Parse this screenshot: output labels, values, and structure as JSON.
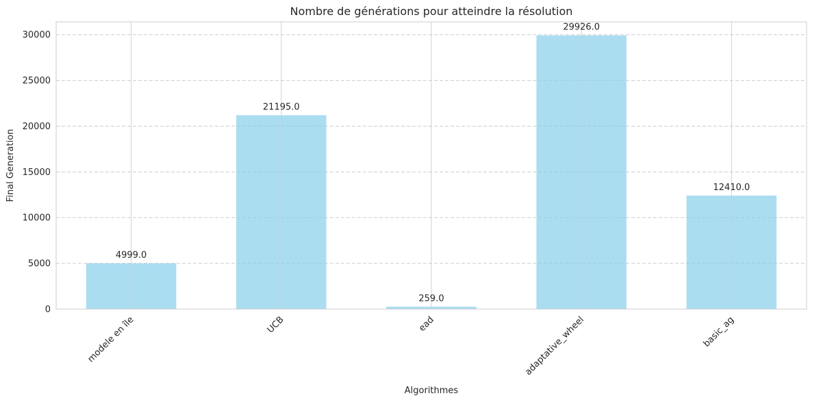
{
  "chart_data": {
    "type": "bar",
    "title": "Nombre de générations pour atteindre la résolution",
    "xlabel": "Algorithmes",
    "ylabel": "Final Generation",
    "categories": [
      "modele en île",
      "UCB",
      "ead",
      "adaptative_wheel",
      "basic_ag"
    ],
    "values": [
      4999.0,
      21195.0,
      259.0,
      29926.0,
      12410.0
    ],
    "value_labels": [
      "4999.0",
      "21195.0",
      "259.0",
      "29926.0",
      "12410.0"
    ],
    "ylim": [
      0,
      31400
    ],
    "yticks": [
      0,
      5000,
      10000,
      15000,
      20000,
      25000,
      30000
    ],
    "ytick_labels": [
      "0",
      "5000",
      "10000",
      "15000",
      "20000",
      "25000",
      "30000"
    ],
    "grid": {
      "x": "solid",
      "y": "dashed"
    },
    "bar_color": "#87ceeb",
    "bar_opacity": 0.7,
    "grid_color": "#cccccc"
  }
}
